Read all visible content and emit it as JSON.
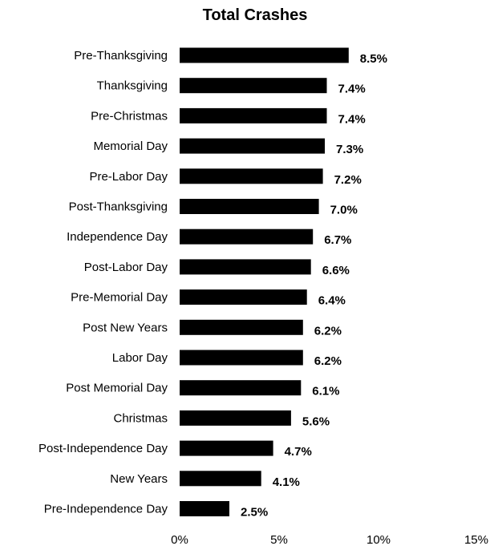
{
  "chart_data": {
    "type": "bar",
    "orientation": "horizontal",
    "title": "Total Crashes",
    "xlabel": "",
    "ylabel": "",
    "categories": [
      "Pre-Thanksgiving",
      "Thanksgiving",
      "Pre-Christmas",
      "Memorial Day",
      "Pre-Labor Day",
      "Post-Thanksgiving",
      "Independence Day",
      "Post-Labor Day",
      "Pre-Memorial Day",
      "Post New Years",
      "Labor Day",
      "Post Memorial Day",
      "Christmas",
      "Post-Independence Day",
      "New Years",
      "Pre-Independence Day"
    ],
    "values": [
      8.5,
      7.4,
      7.4,
      7.3,
      7.2,
      7.0,
      6.7,
      6.6,
      6.4,
      6.2,
      6.2,
      6.1,
      5.6,
      4.7,
      4.1,
      2.5
    ],
    "value_labels": [
      "8.5%",
      "7.4%",
      "7.4%",
      "7.3%",
      "7.2%",
      "7.0%",
      "6.7%",
      "6.6%",
      "6.4%",
      "6.2%",
      "6.2%",
      "6.1%",
      "5.6%",
      "4.7%",
      "4.1%",
      "2.5%"
    ],
    "xlim": [
      0,
      15
    ],
    "xticks": [
      0,
      5,
      10,
      15
    ],
    "xtick_labels": [
      "0%",
      "5%",
      "10%",
      "15%"
    ],
    "grid": false,
    "legend": "none",
    "bar_color": "#000000"
  }
}
